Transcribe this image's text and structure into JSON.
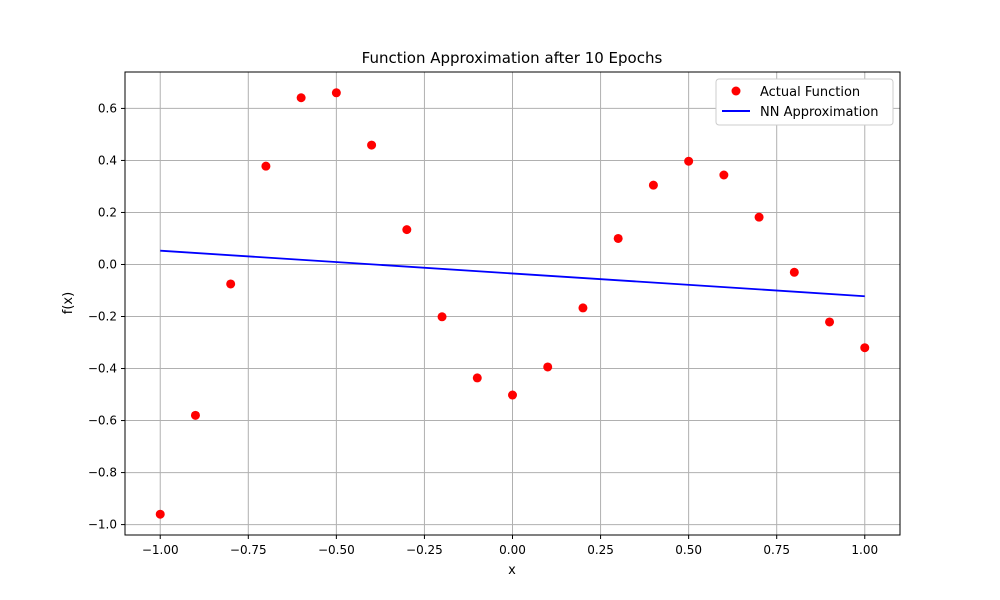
{
  "chart_data": {
    "type": "scatter",
    "title": "Function Approximation after 10 Epochs",
    "xlabel": "x",
    "ylabel": "f(x)",
    "xlim": [
      -1.1,
      1.1
    ],
    "ylim": [
      -1.04,
      0.74
    ],
    "x_ticks": [
      -1.0,
      -0.75,
      -0.5,
      -0.25,
      0.0,
      0.25,
      0.5,
      0.75,
      1.0
    ],
    "x_tick_labels": [
      "−1.00",
      "−0.75",
      "−0.50",
      "−0.25",
      "0.00",
      "0.25",
      "0.50",
      "0.75",
      "1.00"
    ],
    "y_ticks": [
      -1.0,
      -0.8,
      -0.6,
      -0.4,
      -0.2,
      0.0,
      0.2,
      0.4,
      0.6
    ],
    "y_tick_labels": [
      "−1.0",
      "−0.8",
      "−0.6",
      "−0.4",
      "−0.2",
      "0.0",
      "0.2",
      "0.4",
      "0.6"
    ],
    "grid": true,
    "legend_position": "top-right",
    "series": [
      {
        "name": "Actual Function",
        "kind": "points",
        "color": "#ff0000",
        "x": [
          -1.0,
          -0.9,
          -0.8,
          -0.7,
          -0.6,
          -0.5,
          -0.4,
          -0.3,
          -0.2,
          -0.1,
          0.0,
          0.1,
          0.2,
          0.3,
          0.4,
          0.5,
          0.6,
          0.7,
          0.8,
          0.9,
          1.0
        ],
        "y": [
          -0.96,
          -0.58,
          -0.075,
          0.378,
          0.641,
          0.66,
          0.459,
          0.134,
          -0.201,
          -0.436,
          -0.502,
          -0.394,
          -0.167,
          0.1,
          0.305,
          0.397,
          0.344,
          0.182,
          -0.03,
          -0.221,
          -0.32
        ]
      },
      {
        "name": "NN Approximation",
        "kind": "line",
        "color": "#0000ff",
        "x": [
          -1.0,
          1.0
        ],
        "y": [
          0.053,
          -0.122
        ]
      }
    ]
  }
}
